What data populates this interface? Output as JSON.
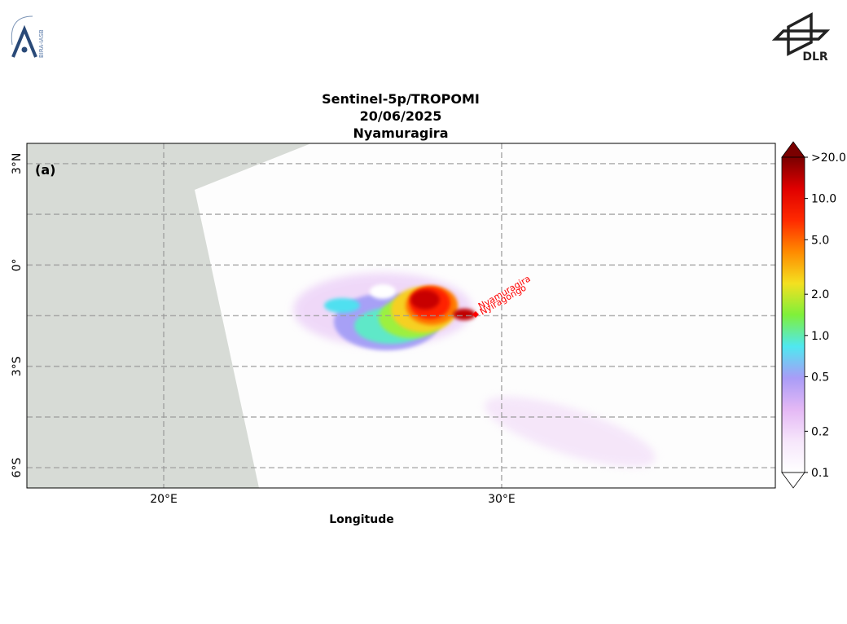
{
  "header": {
    "left_logo": "BIRA-IASB",
    "right_logo": "DLR"
  },
  "map": {
    "title": [
      "Sentinel-5p/TROPOMI",
      "20/06/2025",
      "Nyamuragira"
    ],
    "panel_label": "(a)",
    "x_label": "Longitude",
    "xlim": [
      15.95,
      38.1
    ],
    "ylim": [
      -6.6,
      3.6
    ],
    "xticks": [
      {
        "value": 20,
        "label": "20°E"
      },
      {
        "value": 30,
        "label": "30°E"
      }
    ],
    "yticks": [
      {
        "value": 3,
        "label": "3°N"
      },
      {
        "value": 0,
        "label": "0°"
      },
      {
        "value": -3,
        "label": "3°S"
      },
      {
        "value": -6,
        "label": "6°S"
      }
    ],
    "lat_grid": [
      3,
      1.5,
      0,
      -1.5,
      -3,
      -4.5,
      -6
    ],
    "lon_grid": [
      20,
      30
    ],
    "volcanoes": [
      "Nyamuragira",
      "Nyiragongo"
    ],
    "colorbar": {
      "scale": "log",
      "lim": [
        0.1,
        20
      ],
      "ticks": [
        {
          "value": 0.1,
          "label": "0.1"
        },
        {
          "value": 0.2,
          "label": "0.2"
        },
        {
          "value": 0.5,
          "label": "0.5"
        },
        {
          "value": 1,
          "label": "1.0"
        },
        {
          "value": 2,
          "label": "2.0"
        },
        {
          "value": 5,
          "label": "5.0"
        },
        {
          "value": 10,
          "label": "10.0"
        },
        {
          "value": 20,
          "label": ">20.0"
        }
      ],
      "colors": [
        "#ffffff",
        "#f6e6fb",
        "#e4b8f5",
        "#a99cf7",
        "#4fe8f0",
        "#7ff03a",
        "#f4e020",
        "#ff8a00",
        "#ff2a00",
        "#e00000",
        "#7a0000"
      ]
    }
  }
}
